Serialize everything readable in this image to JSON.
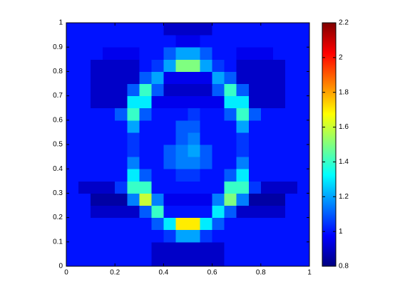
{
  "chart_data": {
    "type": "heatmap",
    "colormap": "jet",
    "xlim": [
      0,
      1
    ],
    "ylim": [
      0,
      1
    ],
    "clim": [
      0.8,
      2.2
    ],
    "xticks": [
      0,
      0.2,
      0.4,
      0.6,
      0.8,
      1
    ],
    "yticks": [
      0,
      0.1,
      0.2,
      0.3,
      0.4,
      0.5,
      0.6,
      0.7,
      0.8,
      0.9,
      1
    ],
    "cticks": [
      0.8,
      1,
      1.2,
      1.4,
      1.6,
      1.8,
      2,
      2.2
    ],
    "z": [
      [
        1,
        1,
        1,
        1,
        1,
        1,
        1,
        0.9,
        0.9,
        0.9,
        0.9,
        0.9,
        0.9,
        1,
        1,
        1,
        1,
        1,
        1,
        1
      ],
      [
        1,
        1,
        1,
        1,
        1,
        1,
        1,
        0.9,
        0.9,
        0.9,
        0.9,
        0.9,
        0.9,
        1,
        1,
        1,
        1,
        1,
        1,
        1
      ],
      [
        1,
        1,
        1,
        1,
        1,
        1,
        1,
        1,
        1.05,
        1.2,
        1.2,
        1.05,
        1,
        1,
        1,
        1,
        1,
        1,
        1,
        1
      ],
      [
        1,
        1,
        1,
        1,
        1,
        1,
        1,
        1.1,
        1.3,
        1.7,
        1.7,
        1.3,
        1.1,
        1,
        1,
        1,
        1,
        1,
        1,
        1
      ],
      [
        1,
        1,
        0.9,
        0.9,
        0.9,
        0.9,
        1.1,
        1.4,
        1,
        1,
        1,
        1,
        1.3,
        1.1,
        0.9,
        0.9,
        0.9,
        0.9,
        1,
        1
      ],
      [
        1,
        1,
        0.85,
        0.85,
        0.85,
        1.15,
        1.6,
        1.15,
        0.95,
        0.95,
        0.95,
        0.95,
        1.15,
        1.5,
        1.15,
        0.85,
        0.85,
        0.85,
        1,
        1
      ],
      [
        1,
        0.9,
        0.9,
        0.9,
        1.05,
        1.4,
        1.4,
        1,
        1,
        1,
        1,
        1,
        1,
        1.4,
        1.4,
        1.05,
        0.9,
        0.9,
        0.9,
        1
      ],
      [
        1,
        1,
        1,
        1,
        1,
        1.3,
        1.1,
        1,
        1,
        1.05,
        1.05,
        1,
        1,
        1.1,
        1.3,
        1,
        1,
        1,
        1,
        1
      ],
      [
        1,
        1,
        1,
        1,
        1,
        1.15,
        1,
        1,
        1.1,
        1.15,
        1.15,
        1.1,
        1,
        1,
        1.15,
        1,
        1,
        1,
        1,
        1
      ],
      [
        1,
        1,
        1,
        1,
        1,
        1.05,
        1,
        1,
        1.1,
        1.15,
        1.2,
        1.1,
        1,
        1,
        1.05,
        1,
        1,
        1,
        1,
        1
      ],
      [
        1,
        1,
        1,
        1,
        1,
        1.05,
        1,
        1,
        1,
        1.1,
        1.15,
        1,
        1,
        1,
        1.05,
        1,
        1,
        1,
        1,
        1
      ],
      [
        1,
        1,
        1,
        1,
        1,
        1.2,
        1,
        1,
        1,
        1.1,
        1.1,
        1,
        1,
        1,
        1.2,
        1,
        1,
        1,
        1,
        1
      ],
      [
        1,
        1,
        1,
        1,
        1.1,
        1.4,
        1.1,
        1,
        1,
        1,
        1.05,
        1,
        1,
        1.1,
        1.4,
        1.1,
        1,
        1,
        1,
        1
      ],
      [
        1,
        1,
        0.9,
        0.9,
        0.9,
        1.3,
        1.3,
        0.95,
        0.95,
        0.95,
        0.95,
        0.95,
        0.95,
        1.3,
        1.3,
        0.9,
        0.9,
        0.9,
        1,
        1
      ],
      [
        1,
        1,
        0.9,
        0.9,
        0.9,
        1.1,
        1.4,
        1.1,
        0.9,
        0.9,
        0.9,
        0.9,
        1.1,
        1.4,
        1.1,
        0.9,
        0.9,
        0.9,
        1,
        1
      ],
      [
        1,
        1,
        0.9,
        0.9,
        0.9,
        0.9,
        1.1,
        1.2,
        0.95,
        0.95,
        0.95,
        0.95,
        1.2,
        1.1,
        0.9,
        0.9,
        0.9,
        0.9,
        1,
        1
      ],
      [
        1,
        1,
        0.9,
        0.9,
        0.9,
        0.9,
        1,
        1.05,
        1.2,
        1.5,
        1.5,
        1.2,
        1.05,
        1,
        0.9,
        0.9,
        0.9,
        0.9,
        1,
        1
      ],
      [
        1,
        1,
        1,
        0.95,
        0.95,
        0.95,
        1,
        1,
        1.1,
        1.2,
        1.2,
        1.1,
        1,
        1,
        0.95,
        0.95,
        0.95,
        1,
        1,
        1
      ],
      [
        1,
        1,
        1,
        1,
        1,
        1,
        1,
        1,
        1,
        0.95,
        0.95,
        1,
        1,
        1,
        1,
        1,
        1,
        1,
        1,
        1
      ],
      [
        1,
        1,
        1,
        1,
        1,
        1,
        1,
        1,
        0.9,
        0.9,
        0.9,
        0.9,
        1,
        1,
        1,
        1,
        1,
        1,
        1,
        1
      ]
    ]
  }
}
